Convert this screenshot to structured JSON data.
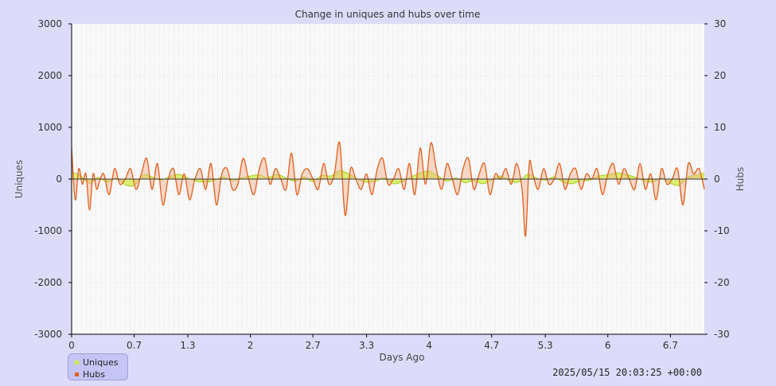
{
  "chart_data": {
    "type": "area",
    "title": "Change in uniques and hubs over time",
    "xlabel": "Days Ago",
    "ylabel_left": "Uniques",
    "ylabel_right": "Hubs",
    "ylim_left": [
      -3000,
      3000
    ],
    "ylim_right": [
      -30,
      30
    ],
    "y_ticks_left": [
      "3000",
      "2000",
      "1000",
      "0",
      "-1000",
      "-2000",
      "-3000"
    ],
    "y_ticks_right": [
      "30",
      "20",
      "10",
      "0",
      "-10",
      "-20",
      "-30"
    ],
    "x_ticks": [
      "0",
      "0.7",
      "1.3",
      "2",
      "2.7",
      "3.3",
      "4",
      "4.7",
      "5.3",
      "6",
      "6.7"
    ],
    "xlim": [
      0,
      7.08
    ],
    "grid": true,
    "legend_position": "bottom-left",
    "series": [
      {
        "name": "Uniques",
        "axis": "left",
        "color": "#ccee44",
        "x": [
          0,
          0.1,
          0.2,
          0.3,
          0.4,
          0.5,
          0.6,
          0.7,
          0.8,
          0.9,
          1.0,
          1.1,
          1.2,
          1.3,
          1.4,
          1.5,
          1.6,
          1.7,
          1.8,
          1.9,
          2.0,
          2.1,
          2.2,
          2.3,
          2.4,
          2.5,
          2.6,
          2.7,
          2.8,
          2.9,
          3.0,
          3.1,
          3.2,
          3.3,
          3.4,
          3.5,
          3.6,
          3.7,
          3.8,
          3.9,
          4.0,
          4.1,
          4.2,
          4.3,
          4.4,
          4.5,
          4.6,
          4.7,
          4.8,
          4.9,
          5.0,
          5.1,
          5.2,
          5.3,
          5.4,
          5.5,
          5.6,
          5.7,
          5.8,
          5.9,
          6.0,
          6.1,
          6.2,
          6.3,
          6.4,
          6.5,
          6.6,
          6.7,
          6.8,
          6.9,
          7.0,
          7.08
        ],
        "values": [
          140,
          60,
          -80,
          30,
          -60,
          20,
          -110,
          -120,
          80,
          40,
          -20,
          50,
          90,
          20,
          -40,
          -60,
          -20,
          40,
          -30,
          20,
          60,
          80,
          30,
          90,
          20,
          -40,
          40,
          -50,
          70,
          60,
          160,
          100,
          0,
          -60,
          -40,
          20,
          -90,
          -50,
          40,
          120,
          150,
          60,
          -40,
          20,
          -70,
          -30,
          -90,
          -20,
          60,
          -30,
          -60,
          90,
          20,
          -20,
          40,
          -60,
          -90,
          -30,
          -20,
          60,
          80,
          120,
          90,
          40,
          -30,
          -60,
          20,
          -80,
          -120,
          40,
          80,
          120
        ]
      },
      {
        "name": "Hubs",
        "axis": "right",
        "color": "#e06020",
        "x": [
          0,
          0.04,
          0.08,
          0.12,
          0.16,
          0.2,
          0.24,
          0.28,
          0.32,
          0.36,
          0.42,
          0.48,
          0.54,
          0.6,
          0.66,
          0.72,
          0.78,
          0.84,
          0.9,
          0.96,
          1.02,
          1.08,
          1.14,
          1.2,
          1.26,
          1.32,
          1.38,
          1.44,
          1.5,
          1.56,
          1.62,
          1.68,
          1.74,
          1.8,
          1.86,
          1.92,
          1.98,
          2.04,
          2.1,
          2.16,
          2.22,
          2.28,
          2.34,
          2.4,
          2.46,
          2.52,
          2.58,
          2.64,
          2.7,
          2.76,
          2.82,
          2.88,
          2.94,
          3.0,
          3.06,
          3.12,
          3.18,
          3.24,
          3.3,
          3.36,
          3.42,
          3.48,
          3.54,
          3.6,
          3.66,
          3.72,
          3.78,
          3.84,
          3.9,
          3.96,
          4.02,
          4.08,
          4.14,
          4.2,
          4.26,
          4.32,
          4.38,
          4.44,
          4.5,
          4.56,
          4.62,
          4.68,
          4.74,
          4.8,
          4.86,
          4.92,
          4.98,
          5.04,
          5.08,
          5.12,
          5.16,
          5.22,
          5.28,
          5.34,
          5.4,
          5.46,
          5.52,
          5.58,
          5.64,
          5.7,
          5.76,
          5.82,
          5.88,
          5.94,
          6.0,
          6.06,
          6.12,
          6.18,
          6.24,
          6.3,
          6.36,
          6.42,
          6.48,
          6.54,
          6.6,
          6.66,
          6.72,
          6.78,
          6.84,
          6.9,
          6.96,
          7.02,
          7.08
        ],
        "values": [
          6,
          -4,
          2,
          -1,
          1,
          -6,
          1,
          -2,
          0,
          1,
          -3,
          2,
          -1,
          0,
          2,
          -2,
          1,
          4,
          -2,
          3,
          -5,
          0,
          2,
          -3,
          1,
          -4,
          0,
          2,
          -2,
          3,
          -5,
          1,
          2,
          -2,
          -1,
          4,
          0,
          -3,
          2,
          4,
          -1,
          2,
          0,
          -2,
          5,
          -3,
          1,
          2,
          0,
          -2,
          3,
          -1,
          1,
          7,
          -7,
          2,
          0,
          -2,
          1,
          -3,
          2,
          4,
          -1,
          0,
          2,
          -2,
          3,
          -3,
          6,
          -1,
          7,
          2,
          -2,
          3,
          0,
          -3,
          2,
          4,
          -2,
          1,
          3,
          -3,
          1,
          0,
          2,
          -1,
          3,
          -2,
          -11,
          3,
          1,
          -2,
          2,
          -1,
          0,
          3,
          -2,
          1,
          2,
          -2,
          1,
          0,
          2,
          -3,
          1,
          3,
          -1,
          2,
          0,
          -2,
          3,
          -2,
          1,
          -4,
          2,
          -1,
          0,
          2,
          -5,
          3,
          1,
          2,
          -2
        ]
      }
    ],
    "timestamp": "2025/05/15 20:03:25 +00:00"
  }
}
